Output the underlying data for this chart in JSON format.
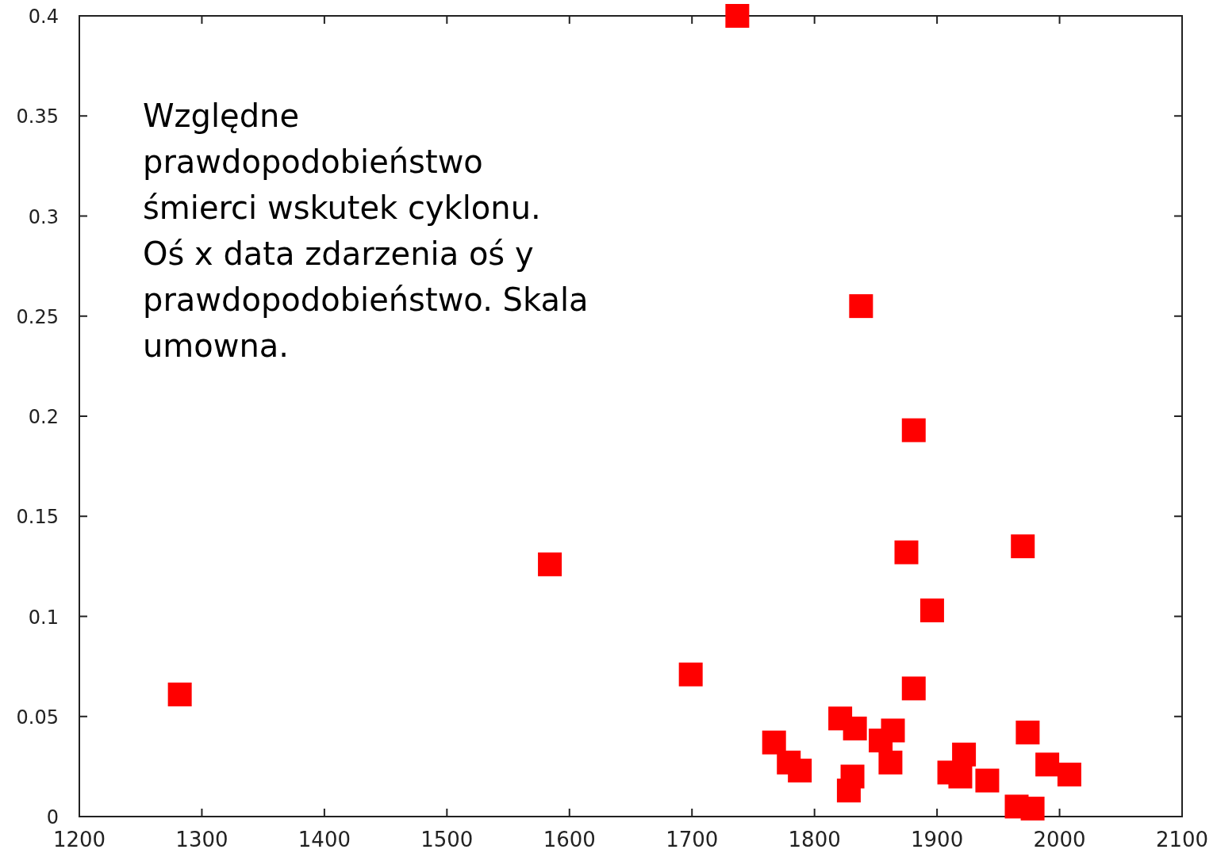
{
  "chart_data": {
    "type": "scatter",
    "annotations": [
      "Względne prawdopodobieństwo śmierci wskutek cyklonu. Oś x data zdarzenia oś y prawdopodobieństwo. Skala umowna."
    ],
    "series": [
      {
        "color": "#ff0000",
        "x": [
          1282,
          1584,
          1699,
          1737,
          1838,
          1881,
          1875,
          1970,
          1896,
          1881,
          1767,
          1779,
          1788,
          1821,
          1833,
          1854,
          1864,
          1862,
          1831,
          1828,
          1974,
          1922,
          1910,
          1919,
          1941,
          1965,
          1978,
          1990,
          2008
        ],
        "values": [
          0.061,
          0.126,
          0.071,
          0.4,
          0.255,
          0.193,
          0.132,
          0.135,
          0.103,
          0.064,
          0.037,
          0.027,
          0.023,
          0.049,
          0.044,
          0.038,
          0.043,
          0.027,
          0.02,
          0.013,
          0.042,
          0.031,
          0.022,
          0.02,
          0.018,
          0.005,
          0.004,
          0.026,
          0.021
        ]
      }
    ],
    "marker": "square",
    "xlim": [
      1200,
      2100
    ],
    "ylim": [
      0,
      0.4
    ],
    "xticks": [
      1200,
      1300,
      1400,
      1500,
      1600,
      1700,
      1800,
      1900,
      2000,
      2100
    ],
    "yticks": [
      0,
      0.05,
      0.1,
      0.15,
      0.2,
      0.25,
      0.3,
      0.35,
      0.4
    ],
    "grid": false
  }
}
